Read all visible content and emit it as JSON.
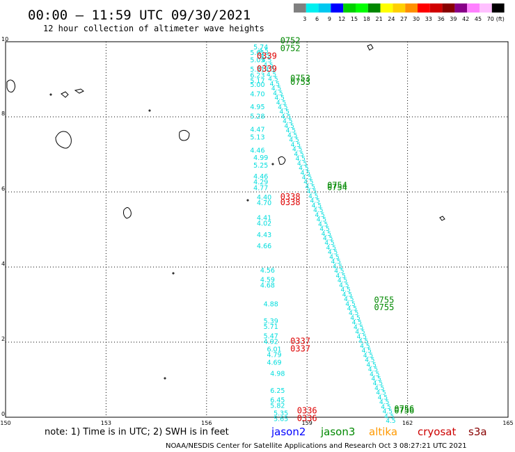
{
  "header": {
    "title": "00:00 – 11:59 UTC 09/30/2021",
    "subtitle": "12 hour collection of altimeter wave heights"
  },
  "colorbar": {
    "labels": [
      "3",
      "6",
      "9",
      "12",
      "15",
      "18",
      "21",
      "24",
      "27",
      "30",
      "33",
      "36",
      "39",
      "42",
      "45",
      "70"
    ],
    "unit": "(ft)",
    "colors": [
      "#808080",
      "#00f0f0",
      "#00c8f0",
      "#0000ff",
      "#00d000",
      "#00ff00",
      "#008800",
      "#ffff00",
      "#ffd000",
      "#ff9000",
      "#ff0000",
      "#d00000",
      "#880000",
      "#880088",
      "#ff80ff",
      "#ffc0ff",
      "#000000"
    ]
  },
  "footer": {
    "note": "note: 1) Time is in UTC; 2) SWH is in feet",
    "credit": "NOAA/NESDIS Center for Satellite Applications and Research   Oct  3 08:27:21 UTC 2021",
    "satellites": [
      {
        "name": "jason2",
        "color": "#0000ff"
      },
      {
        "name": "jason3",
        "color": "#008800"
      },
      {
        "name": "altika",
        "color": "#ff9900"
      },
      {
        "name": "cryosat",
        "color": "#cc0000"
      },
      {
        "name": "s3a",
        "color": "#880000"
      }
    ]
  },
  "chart_data": {
    "type": "scatter",
    "xlim": [
      150,
      165
    ],
    "ylim": [
      0,
      10
    ],
    "xticks": [
      "150",
      "153",
      "156",
      "159",
      "162",
      "165"
    ],
    "yticks": [
      "0",
      "2",
      "4",
      "6",
      "8",
      "10"
    ],
    "grid": true,
    "point_color": "#00dddd",
    "track_west": [
      {
        "lon": 157.4,
        "lat": 9.8,
        "v": "5.74"
      },
      {
        "lon": 157.3,
        "lat": 9.65,
        "v": "5.61"
      },
      {
        "lon": 157.3,
        "lat": 9.45,
        "v": "5.05"
      },
      {
        "lon": 157.3,
        "lat": 9.2,
        "v": "5.31"
      },
      {
        "lon": 157.3,
        "lat": 9.05,
        "v": "6.23"
      },
      {
        "lon": 157.3,
        "lat": 8.9,
        "v": "5.17"
      },
      {
        "lon": 157.3,
        "lat": 8.8,
        "v": "5.00"
      },
      {
        "lon": 157.3,
        "lat": 8.55,
        "v": "4.70"
      },
      {
        "lon": 157.3,
        "lat": 8.2,
        "v": "4.95"
      },
      {
        "lon": 157.3,
        "lat": 7.95,
        "v": "5.28"
      },
      {
        "lon": 157.3,
        "lat": 7.6,
        "v": "4.47"
      },
      {
        "lon": 157.3,
        "lat": 7.4,
        "v": "5.13"
      },
      {
        "lon": 157.3,
        "lat": 7.05,
        "v": "4.46"
      },
      {
        "lon": 157.4,
        "lat": 6.85,
        "v": "4.99"
      },
      {
        "lon": 157.4,
        "lat": 6.65,
        "v": "5.25"
      },
      {
        "lon": 157.4,
        "lat": 6.35,
        "v": "4.46"
      },
      {
        "lon": 157.4,
        "lat": 6.2,
        "v": "4.29"
      },
      {
        "lon": 157.4,
        "lat": 6.05,
        "v": "4.77"
      },
      {
        "lon": 157.5,
        "lat": 5.8,
        "v": "4.40"
      },
      {
        "lon": 157.5,
        "lat": 5.65,
        "v": "4.70"
      },
      {
        "lon": 157.5,
        "lat": 5.25,
        "v": "4.41"
      },
      {
        "lon": 157.5,
        "lat": 5.1,
        "v": "4.02"
      },
      {
        "lon": 157.5,
        "lat": 4.8,
        "v": "4.43"
      },
      {
        "lon": 157.5,
        "lat": 4.5,
        "v": "4.66"
      },
      {
        "lon": 157.6,
        "lat": 3.85,
        "v": "4.56"
      },
      {
        "lon": 157.6,
        "lat": 3.6,
        "v": "4.59"
      },
      {
        "lon": 157.6,
        "lat": 3.45,
        "v": "4.68"
      },
      {
        "lon": 157.7,
        "lat": 2.95,
        "v": "4.88"
      },
      {
        "lon": 157.7,
        "lat": 2.5,
        "v": "5.39"
      },
      {
        "lon": 157.7,
        "lat": 2.35,
        "v": "5.71"
      },
      {
        "lon": 157.7,
        "lat": 2.1,
        "v": "5.47"
      },
      {
        "lon": 157.7,
        "lat": 1.95,
        "v": "4.92"
      },
      {
        "lon": 157.8,
        "lat": 1.75,
        "v": "6.01"
      },
      {
        "lon": 157.8,
        "lat": 1.6,
        "v": "4.79"
      },
      {
        "lon": 157.8,
        "lat": 1.4,
        "v": "4.69"
      },
      {
        "lon": 157.9,
        "lat": 1.1,
        "v": "4.98"
      },
      {
        "lon": 157.9,
        "lat": 0.65,
        "v": "6.25"
      },
      {
        "lon": 157.9,
        "lat": 0.4,
        "v": "6.45"
      },
      {
        "lon": 157.9,
        "lat": 0.25,
        "v": "5.82"
      },
      {
        "lon": 158.0,
        "lat": 0.05,
        "v": "5.35"
      },
      {
        "lon": 158.0,
        "lat": -0.1,
        "v": "5.65"
      }
    ],
    "time_labels": [
      {
        "lon": 158.2,
        "lat": 9.95,
        "t": "0752",
        "color": "#008800"
      },
      {
        "lon": 158.2,
        "lat": 9.75,
        "t": "0752",
        "color": "#008800"
      },
      {
        "lon": 157.5,
        "lat": 9.55,
        "t": "0339",
        "color": "#dd0000"
      },
      {
        "lon": 157.5,
        "lat": 9.2,
        "t": "0339",
        "color": "#dd0000"
      },
      {
        "lon": 158.5,
        "lat": 8.95,
        "t": "0753",
        "color": "#008800"
      },
      {
        "lon": 158.5,
        "lat": 8.85,
        "t": "0753",
        "color": "#008800"
      },
      {
        "lon": 159.6,
        "lat": 6.1,
        "t": "0754",
        "color": "#008800"
      },
      {
        "lon": 159.6,
        "lat": 6.05,
        "t": "0754",
        "color": "#008800"
      },
      {
        "lon": 158.2,
        "lat": 5.8,
        "t": "0338",
        "color": "#dd0000"
      },
      {
        "lon": 158.2,
        "lat": 5.65,
        "t": "0338",
        "color": "#dd0000"
      },
      {
        "lon": 161.0,
        "lat": 3.05,
        "t": "0755",
        "color": "#008800"
      },
      {
        "lon": 161.0,
        "lat": 2.85,
        "t": "0755",
        "color": "#008800"
      },
      {
        "lon": 158.5,
        "lat": 1.95,
        "t": "0337",
        "color": "#dd0000"
      },
      {
        "lon": 158.5,
        "lat": 1.75,
        "t": "0337",
        "color": "#dd0000"
      },
      {
        "lon": 161.6,
        "lat": 0.15,
        "t": "0756",
        "color": "#008800"
      },
      {
        "lon": 161.6,
        "lat": 0.1,
        "t": "0756",
        "color": "#008800"
      },
      {
        "lon": 158.7,
        "lat": 0.1,
        "t": "0336",
        "color": "#dd0000"
      },
      {
        "lon": 158.7,
        "lat": -0.1,
        "t": "0336",
        "color": "#dd0000"
      }
    ]
  }
}
